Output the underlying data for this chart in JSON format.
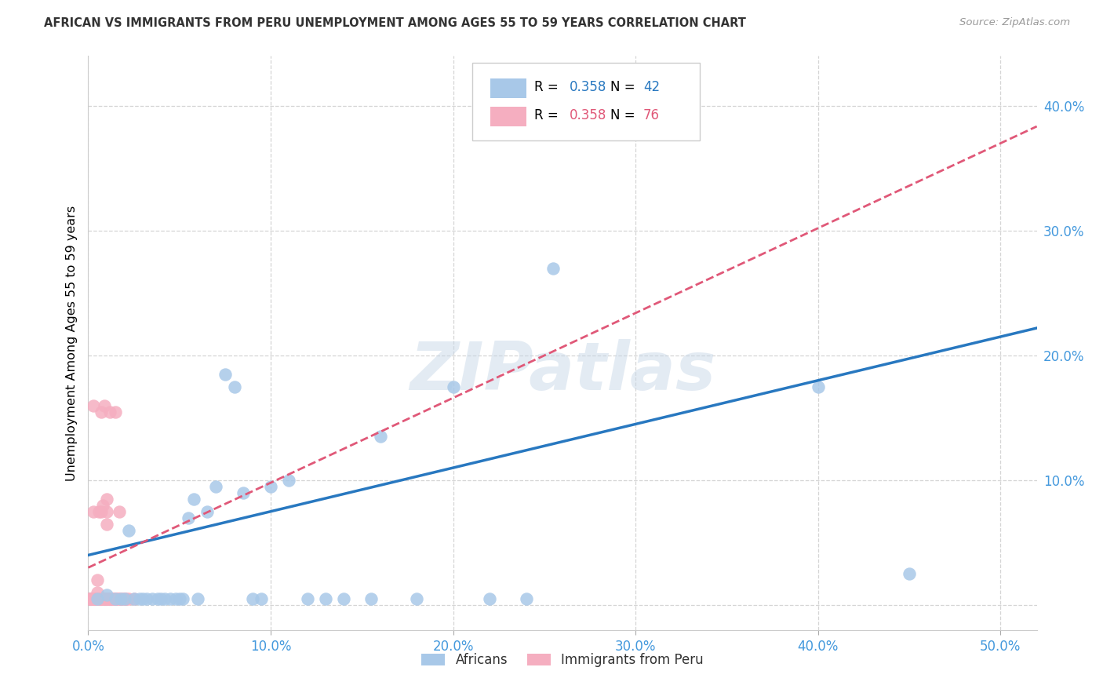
{
  "title": "AFRICAN VS IMMIGRANTS FROM PERU UNEMPLOYMENT AMONG AGES 55 TO 59 YEARS CORRELATION CHART",
  "source": "Source: ZipAtlas.com",
  "ylabel": "Unemployment Among Ages 55 to 59 years",
  "xlim": [
    0.0,
    0.52
  ],
  "ylim": [
    -0.02,
    0.44
  ],
  "xticks": [
    0.0,
    0.1,
    0.2,
    0.3,
    0.4,
    0.5
  ],
  "yticks": [
    0.0,
    0.1,
    0.2,
    0.3,
    0.4
  ],
  "xticklabels": [
    "0.0%",
    "10.0%",
    "20.0%",
    "30.0%",
    "40.0%",
    "50.0%"
  ],
  "yticklabels": [
    "",
    "10.0%",
    "20.0%",
    "30.0%",
    "40.0%"
  ],
  "background_color": "#ffffff",
  "grid_color": "#d5d5d5",
  "watermark": "ZIPatlas",
  "legend_r_african": "0.358",
  "legend_n_african": "42",
  "legend_r_peru": "0.358",
  "legend_n_peru": "76",
  "african_color": "#a8c8e8",
  "peru_color": "#f5aec0",
  "african_line_color": "#2878c0",
  "peru_line_color": "#e05878",
  "tick_color": "#4499dd",
  "africans_x": [
    0.005,
    0.01,
    0.015,
    0.018,
    0.02,
    0.022,
    0.025,
    0.028,
    0.03,
    0.032,
    0.035,
    0.038,
    0.04,
    0.042,
    0.045,
    0.048,
    0.05,
    0.052,
    0.055,
    0.058,
    0.06,
    0.065,
    0.07,
    0.075,
    0.08,
    0.085,
    0.09,
    0.095,
    0.1,
    0.11,
    0.12,
    0.13,
    0.14,
    0.155,
    0.16,
    0.18,
    0.2,
    0.22,
    0.24,
    0.255,
    0.4,
    0.45
  ],
  "africans_y": [
    0.005,
    0.008,
    0.005,
    0.005,
    0.005,
    0.06,
    0.005,
    0.005,
    0.005,
    0.005,
    0.005,
    0.005,
    0.005,
    0.005,
    0.005,
    0.005,
    0.005,
    0.005,
    0.07,
    0.085,
    0.005,
    0.075,
    0.095,
    0.185,
    0.175,
    0.09,
    0.005,
    0.005,
    0.095,
    0.1,
    0.005,
    0.005,
    0.005,
    0.005,
    0.135,
    0.005,
    0.175,
    0.005,
    0.005,
    0.27,
    0.175,
    0.025
  ],
  "peru_x": [
    0.001,
    0.001,
    0.001,
    0.001,
    0.001,
    0.001,
    0.001,
    0.001,
    0.002,
    0.002,
    0.002,
    0.002,
    0.002,
    0.002,
    0.002,
    0.002,
    0.003,
    0.003,
    0.003,
    0.003,
    0.003,
    0.003,
    0.003,
    0.003,
    0.004,
    0.004,
    0.004,
    0.004,
    0.005,
    0.005,
    0.005,
    0.005,
    0.006,
    0.006,
    0.006,
    0.007,
    0.007,
    0.007,
    0.007,
    0.008,
    0.008,
    0.008,
    0.009,
    0.009,
    0.009,
    0.01,
    0.01,
    0.01,
    0.01,
    0.01,
    0.01,
    0.011,
    0.011,
    0.012,
    0.012,
    0.012,
    0.013,
    0.013,
    0.014,
    0.014,
    0.015,
    0.015,
    0.015,
    0.015,
    0.016,
    0.016,
    0.017,
    0.017,
    0.018,
    0.018,
    0.019,
    0.02,
    0.02,
    0.021,
    0.022,
    0.025
  ],
  "peru_y": [
    0.005,
    0.005,
    0.005,
    0.005,
    0.005,
    0.005,
    0.005,
    0.005,
    0.005,
    0.005,
    0.005,
    0.005,
    0.005,
    0.005,
    0.005,
    0.005,
    0.005,
    0.005,
    0.005,
    0.005,
    0.005,
    0.005,
    0.075,
    0.16,
    0.005,
    0.005,
    0.005,
    0.005,
    0.005,
    0.005,
    0.01,
    0.02,
    0.005,
    0.005,
    0.075,
    0.005,
    0.005,
    0.075,
    0.155,
    0.005,
    0.005,
    0.08,
    0.005,
    0.005,
    0.16,
    0.005,
    0.005,
    0.005,
    0.065,
    0.075,
    0.085,
    0.005,
    0.005,
    0.005,
    0.005,
    0.155,
    0.005,
    0.005,
    0.005,
    0.005,
    0.005,
    0.005,
    0.005,
    0.155,
    0.005,
    0.005,
    0.005,
    0.075,
    0.005,
    0.005,
    0.005,
    0.005,
    0.005,
    0.005,
    0.005,
    0.005
  ],
  "african_line_x0": 0.0,
  "african_line_y0": 0.04,
  "african_line_x1": 0.5,
  "african_line_y1": 0.215,
  "peru_line_x0": 0.0,
  "peru_line_y0": 0.03,
  "peru_line_x1": 0.5,
  "peru_line_y1": 0.37
}
